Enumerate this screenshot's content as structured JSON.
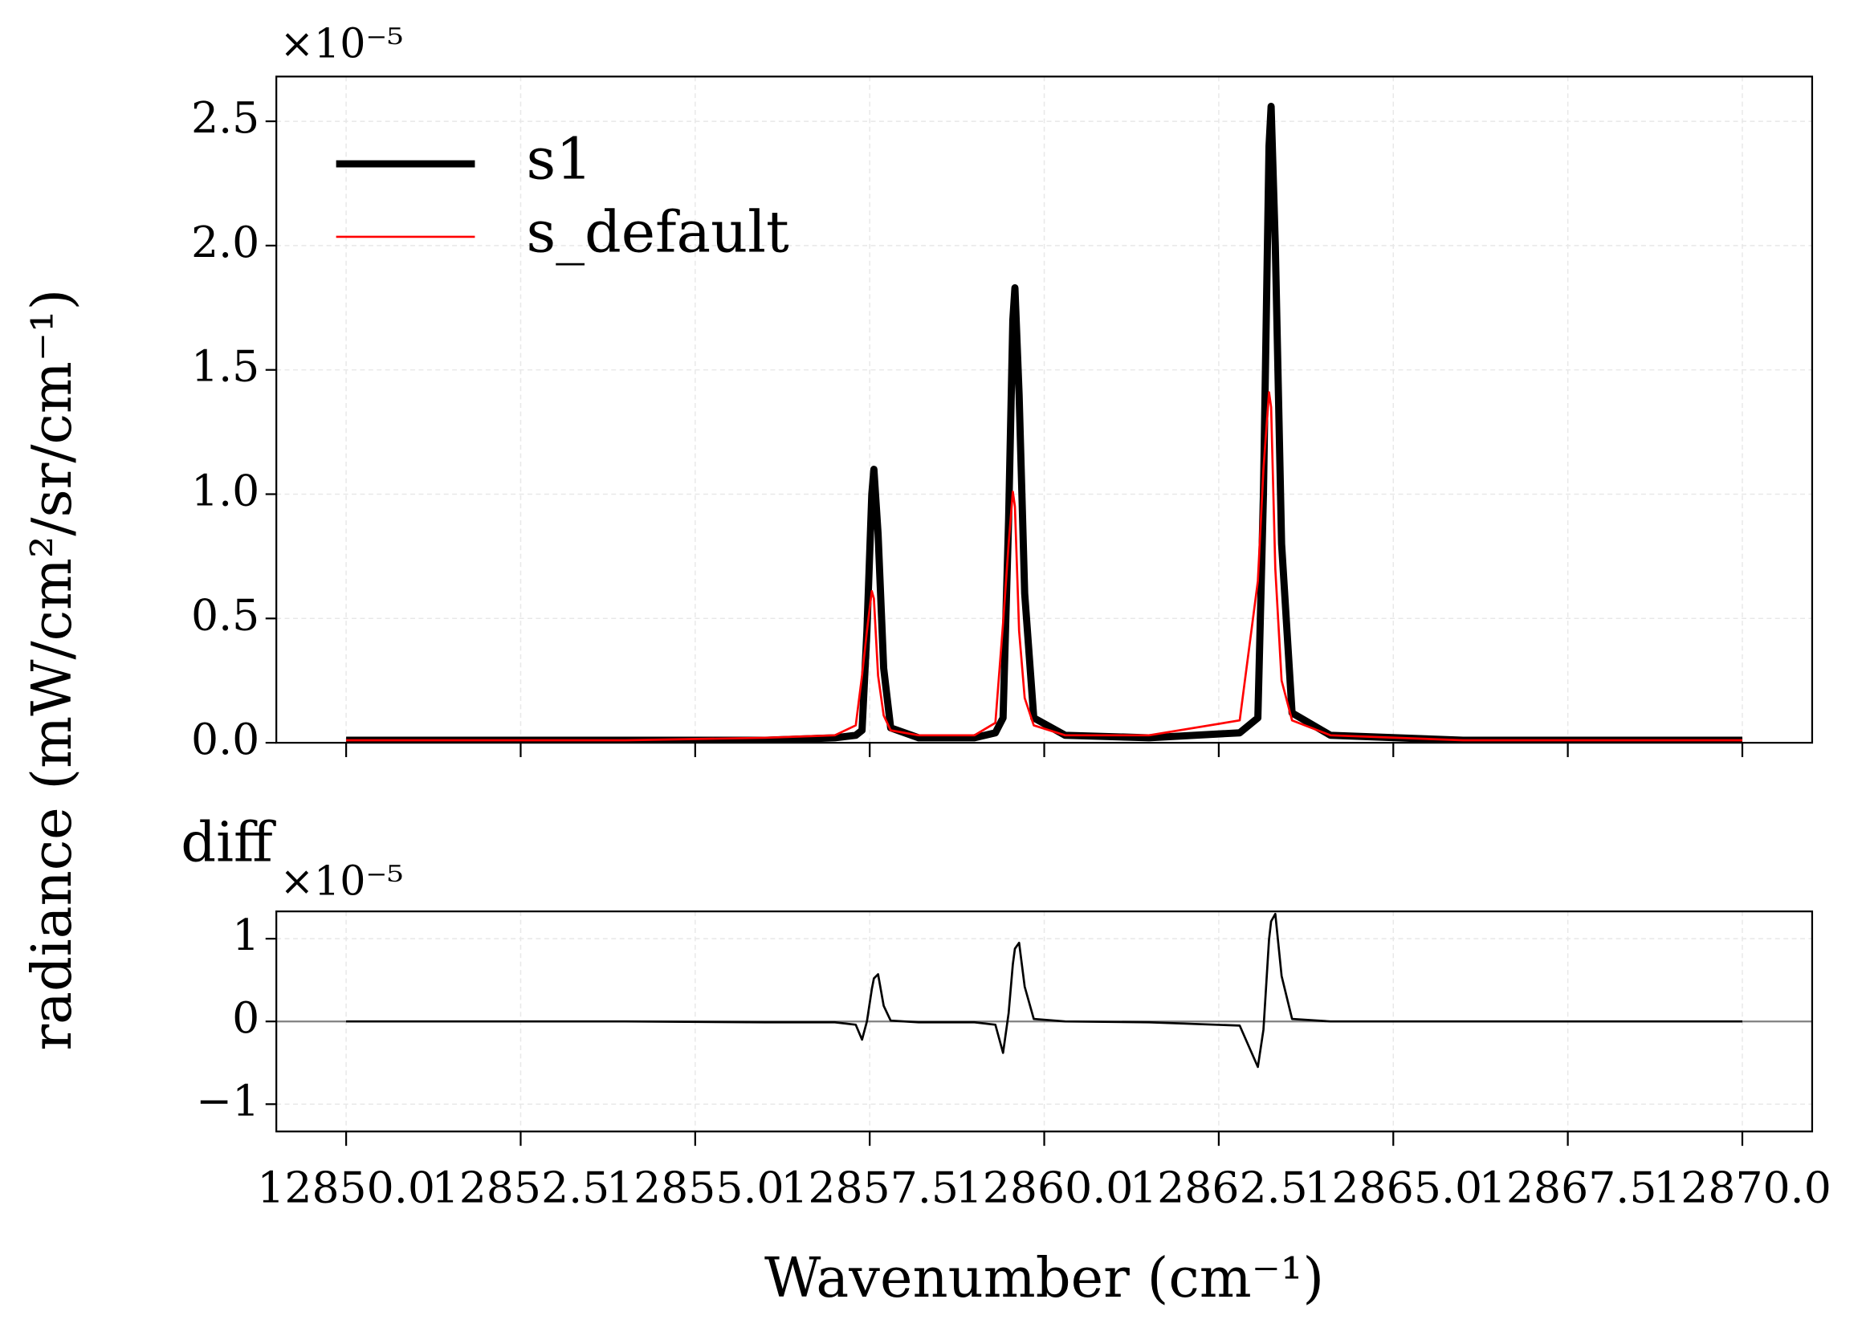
{
  "chart_data": [
    {
      "type": "line",
      "ylabel": "radiance (mW/cm²/sr/cm⁻¹)",
      "offset_text": "×10⁻⁵",
      "x": [
        12850,
        12854,
        12856,
        12857,
        12857.3,
        12857.39,
        12857.46,
        12857.53,
        12857.56,
        12857.62,
        12857.7,
        12857.8,
        12858.2,
        12859,
        12859.3,
        12859.41,
        12859.49,
        12859.55,
        12859.58,
        12859.64,
        12859.72,
        12859.85,
        12860.3,
        12861.5,
        12862.8,
        12863.06,
        12863.14,
        12863.22,
        12863.25,
        12863.31,
        12863.4,
        12863.55,
        12864.1,
        12866,
        12870
      ],
      "series": [
        {
          "name": "s1",
          "color": "#000000",
          "linewidth": 6,
          "values": [
            0.01,
            0.01,
            0.01,
            0.02,
            0.03,
            0.05,
            0.45,
            1.0,
            1.1,
            0.84,
            0.3,
            0.06,
            0.02,
            0.02,
            0.04,
            0.1,
            0.9,
            1.7,
            1.83,
            1.4,
            0.6,
            0.1,
            0.03,
            0.02,
            0.04,
            0.1,
            1.0,
            2.4,
            2.56,
            2.0,
            0.8,
            0.12,
            0.03,
            0.01,
            0.01
          ]
        },
        {
          "name": "s_default",
          "color": "#ff0000",
          "linewidth": 1.8,
          "values": [
            0.01,
            0.01,
            0.02,
            0.03,
            0.07,
            0.27,
            0.45,
            0.61,
            0.58,
            0.27,
            0.11,
            0.05,
            0.03,
            0.03,
            0.08,
            0.48,
            0.8,
            1.01,
            0.95,
            0.45,
            0.18,
            0.07,
            0.03,
            0.03,
            0.09,
            0.65,
            1.1,
            1.41,
            1.35,
            0.7,
            0.25,
            0.09,
            0.03,
            0.01,
            0.01
          ]
        }
      ],
      "xlim": [
        12849,
        12871
      ],
      "xticks": [
        {
          "value": 12850,
          "label": "12850.0"
        },
        12852.5,
        {
          "value": 12855,
          "label": "12855.0"
        },
        12857.5,
        {
          "value": 12860,
          "label": "12860.0"
        },
        12862.5,
        {
          "value": 12865,
          "label": "12865.0"
        },
        12867.5,
        {
          "value": 12870,
          "label": "12870.0"
        }
      ],
      "xticklabels": false,
      "ylim": [
        0,
        2.68
      ],
      "yticks": [
        {
          "value": 0,
          "label": "0.0"
        },
        0.5,
        {
          "value": 1,
          "label": "1.0"
        },
        1.5,
        {
          "value": 2,
          "label": "2.0"
        },
        2.5
      ],
      "grid": true,
      "legend": "upper left"
    },
    {
      "type": "line",
      "title": "diff",
      "xlabel": "Wavenumber (cm⁻¹)",
      "offset_text": "×10⁻⁵",
      "x": [
        12850,
        12854,
        12856,
        12857,
        12857.3,
        12857.39,
        12857.46,
        12857.53,
        12857.56,
        12857.62,
        12857.7,
        12857.8,
        12858.2,
        12859,
        12859.3,
        12859.41,
        12859.49,
        12859.55,
        12859.58,
        12859.64,
        12859.72,
        12859.85,
        12860.3,
        12861.5,
        12862.8,
        12863.06,
        12863.14,
        12863.22,
        12863.25,
        12863.31,
        12863.4,
        12863.55,
        12864.1,
        12866,
        12870
      ],
      "series": [
        {
          "color": "#000000",
          "linewidth": 1.8,
          "values": [
            0,
            0,
            -0.01,
            -0.01,
            -0.04,
            -0.22,
            0,
            0.39,
            0.52,
            0.57,
            0.19,
            0.01,
            -0.01,
            -0.01,
            -0.04,
            -0.38,
            0.1,
            0.69,
            0.88,
            0.95,
            0.42,
            0.03,
            0,
            -0.01,
            -0.05,
            -0.55,
            -0.1,
            0.99,
            1.21,
            1.3,
            0.55,
            0.03,
            0,
            0,
            0
          ]
        }
      ],
      "hline": 0,
      "hline_color": "#808080",
      "xlim": [
        12849,
        12871
      ],
      "xticks": [
        {
          "value": 12850,
          "label": "12850.0"
        },
        12852.5,
        {
          "value": 12855,
          "label": "12855.0"
        },
        12857.5,
        {
          "value": 12860,
          "label": "12860.0"
        },
        12862.5,
        {
          "value": 12865,
          "label": "12865.0"
        },
        12867.5,
        {
          "value": 12870,
          "label": "12870.0"
        }
      ],
      "xticklabels": true,
      "ylim": [
        -1.33,
        1.33
      ],
      "yticks": [
        {
          "value": -1,
          "label": "−1"
        },
        0,
        1
      ],
      "grid": true
    }
  ]
}
